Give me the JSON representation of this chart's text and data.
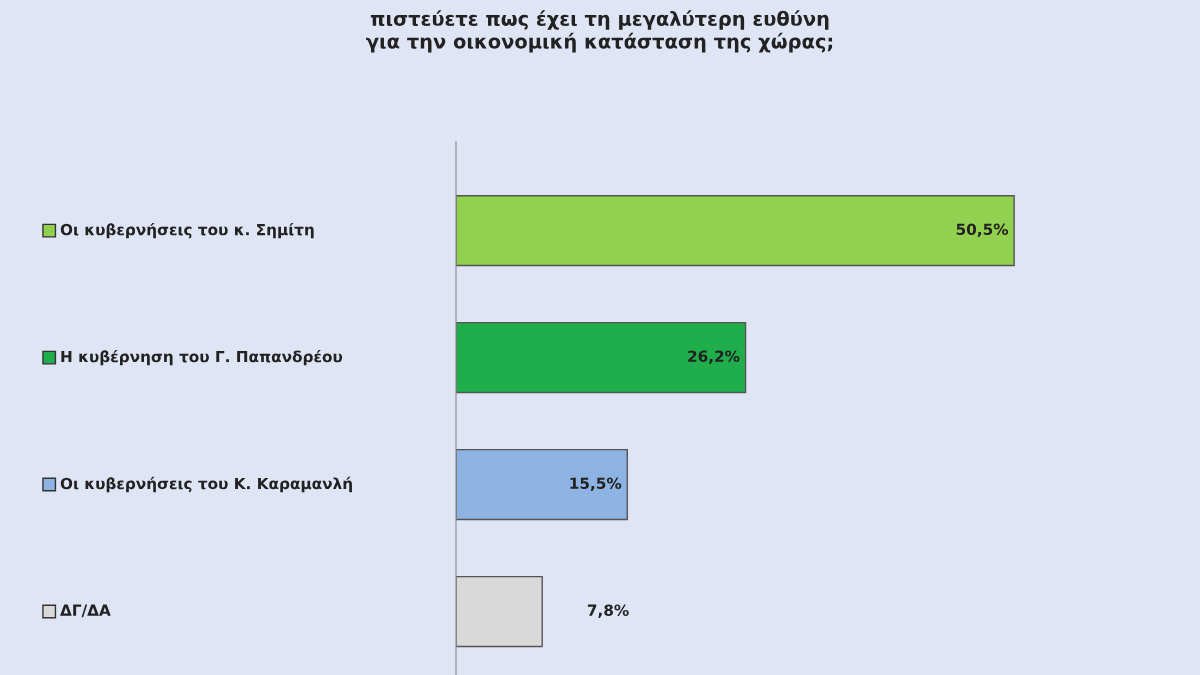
{
  "chart_data": {
    "type": "bar",
    "orientation": "horizontal",
    "title": "πιστεύετε πως έχει τη μεγαλύτερη ευθύνη\nγια την οικονομική κατάσταση της χώρας;",
    "categories": [
      "Οι κυβερνήσεις του κ. Σημίτη",
      "Η κυβέρνηση του Γ. Παπανδρέου",
      "Οι κυβερνήσεις του Κ. Καραμανλή",
      "ΔΓ/ΔΑ"
    ],
    "values": [
      50.5,
      26.2,
      15.5,
      7.8
    ],
    "colors": [
      "#92d050",
      "#1fae4b",
      "#8db3e2",
      "#d9d9d9"
    ],
    "value_labels": [
      "50,5%",
      "26,2%",
      "15,5%",
      "7,8%"
    ],
    "legend": false
  }
}
